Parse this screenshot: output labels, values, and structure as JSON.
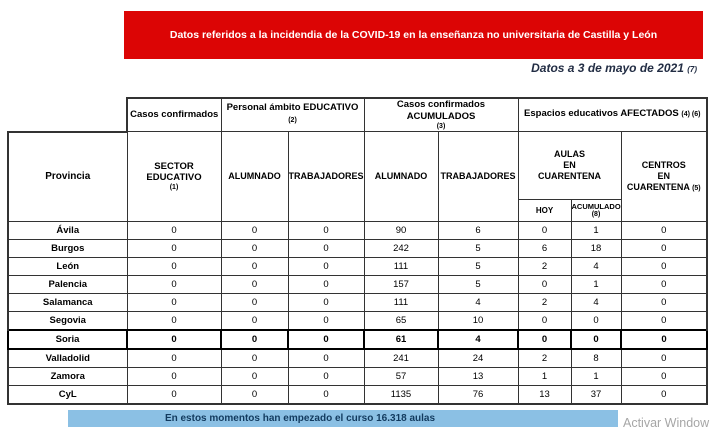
{
  "colors": {
    "banner_red": "#dc0505",
    "bar_blue": "#8bc0e4",
    "border_dark": "#333333",
    "date_navy": "#222d44",
    "bar_text_navy": "#123a5e",
    "watermark_gray": "#a6a6a6"
  },
  "banner": {
    "title": "Datos referidos a la incidendia de la COVID-19 en la enseñanza no universitaria de Castilla y León"
  },
  "date_line": {
    "text": "Datos a 3 de mayo de 2021",
    "note": "(7)"
  },
  "table": {
    "groups": {
      "casos_confirmados": "Casos confirmados",
      "personal": "Personal ámbito EDUCATIVO",
      "personal_note": "(2)",
      "acumulados": "Casos confirmados ACUMULADOS",
      "acumulados_note": "(3)",
      "espacios": "Espacios educativos AFECTADOS",
      "espacios_note": "(4) (6)"
    },
    "headers": {
      "provincia": "Provincia",
      "sector": "SECTOR EDUCATIVO",
      "sector_note": "(1)",
      "alumnado": "ALUMNADO",
      "trabajadores": "TRABAJADORES",
      "alumnado2": "ALUMNADO",
      "trabajadores2": "TRABAJADORES",
      "aulas_l1": "AULAS",
      "aulas_l2": "EN",
      "aulas_l3": "CUARENTENA",
      "hoy": "HOY",
      "acumulado": "ACUMULADO",
      "acumulado_note": "(8)",
      "centros_l1": "CENTROS",
      "centros_l2": "EN",
      "centros_l3": "CUARENTENA",
      "centros_note": "(5)"
    },
    "rows": [
      {
        "provincia": "Ávila",
        "bold": false,
        "values": [
          "0",
          "0",
          "0",
          "90",
          "6",
          "0",
          "1",
          "0"
        ]
      },
      {
        "provincia": "Burgos",
        "bold": false,
        "values": [
          "0",
          "0",
          "0",
          "242",
          "5",
          "6",
          "18",
          "0"
        ]
      },
      {
        "provincia": "León",
        "bold": false,
        "values": [
          "0",
          "0",
          "0",
          "111",
          "5",
          "2",
          "4",
          "0"
        ]
      },
      {
        "provincia": "Palencia",
        "bold": false,
        "values": [
          "0",
          "0",
          "0",
          "157",
          "5",
          "0",
          "1",
          "0"
        ]
      },
      {
        "provincia": "Salamanca",
        "bold": false,
        "values": [
          "0",
          "0",
          "0",
          "111",
          "4",
          "2",
          "4",
          "0"
        ]
      },
      {
        "provincia": "Segovia",
        "bold": false,
        "values": [
          "0",
          "0",
          "0",
          "65",
          "10",
          "0",
          "0",
          "0"
        ]
      },
      {
        "provincia": "Soria",
        "bold": true,
        "values": [
          "0",
          "0",
          "0",
          "61",
          "4",
          "0",
          "0",
          "0"
        ]
      },
      {
        "provincia": "Valladolid",
        "bold": false,
        "values": [
          "0",
          "0",
          "0",
          "241",
          "24",
          "2",
          "8",
          "0"
        ]
      },
      {
        "provincia": "Zamora",
        "bold": false,
        "values": [
          "0",
          "0",
          "0",
          "57",
          "13",
          "1",
          "1",
          "0"
        ]
      },
      {
        "provincia": "CyL",
        "bold": false,
        "values": [
          "0",
          "0",
          "0",
          "1135",
          "76",
          "13",
          "37",
          "0"
        ]
      }
    ]
  },
  "footer": {
    "bar_text": "En estos momentos han empezado el curso 16.318 aulas"
  },
  "watermark": "Activar Window"
}
